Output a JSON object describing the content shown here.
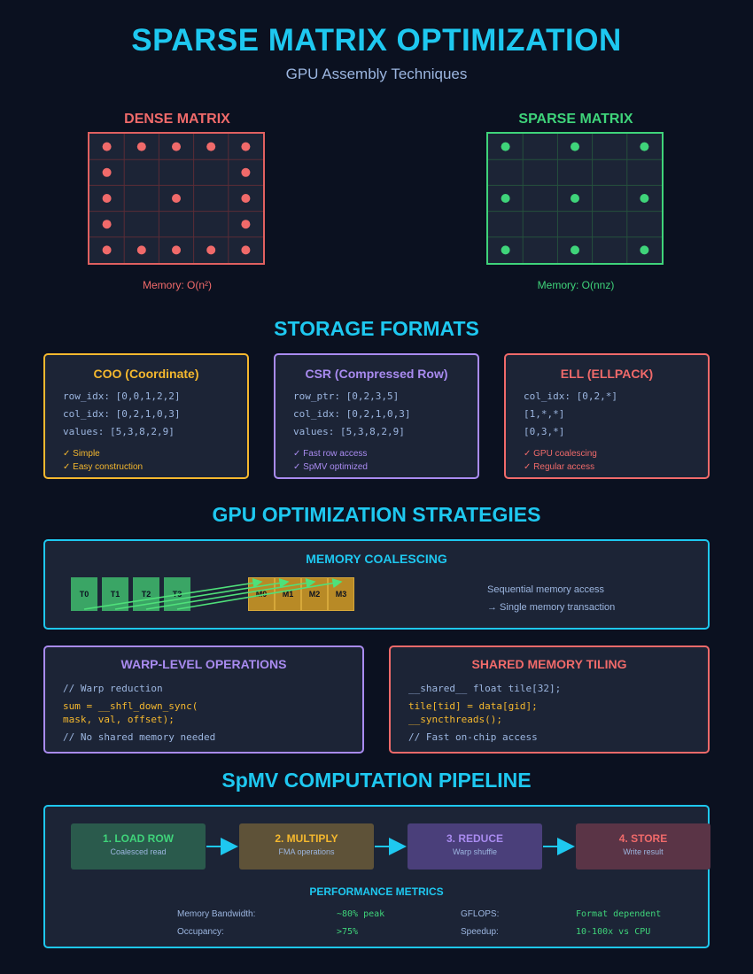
{
  "header": {
    "title": "SPARSE MATRIX OPTIMIZATION",
    "subtitle": "GPU Assembly Techniques"
  },
  "dense": {
    "title": "DENSE MATRIX",
    "caption": "Memory: O(n²)",
    "color": "#f06a6a",
    "mask": [
      [
        1,
        1,
        1,
        1,
        1
      ],
      [
        1,
        0,
        0,
        0,
        1
      ],
      [
        1,
        0,
        1,
        0,
        1
      ],
      [
        1,
        0,
        0,
        0,
        1
      ],
      [
        1,
        1,
        1,
        1,
        1
      ]
    ]
  },
  "sparse": {
    "title": "SPARSE MATRIX",
    "caption": "Memory: O(nnz)",
    "color": "#3fd47a",
    "mask": [
      [
        1,
        0,
        1,
        0,
        1
      ],
      [
        0,
        0,
        0,
        0,
        0
      ],
      [
        1,
        0,
        1,
        0,
        1
      ],
      [
        0,
        0,
        0,
        0,
        0
      ],
      [
        1,
        0,
        1,
        0,
        1
      ]
    ]
  },
  "storage": {
    "title": "STORAGE FORMATS",
    "formats": [
      {
        "name": "COO (Coordinate)",
        "color": "#f5b82e",
        "lines": [
          "row_idx: [0,0,1,2,2]",
          "col_idx: [0,2,1,0,3]",
          "values: [5,3,8,2,9]"
        ],
        "checks": [
          "✓ Simple",
          "✓ Easy construction"
        ]
      },
      {
        "name": "CSR (Compressed Row)",
        "color": "#a98bf0",
        "lines": [
          "row_ptr: [0,2,3,5]",
          "col_idx: [0,2,1,0,3]",
          "values: [5,3,8,2,9]"
        ],
        "checks": [
          "✓ Fast row access",
          "✓ SpMV optimized"
        ]
      },
      {
        "name": "ELL (ELLPACK)",
        "color": "#f06a6a",
        "lines": [
          "col_idx: [0,2,*]",
          "[1,*,*]",
          "[0,3,*]"
        ],
        "checks": [
          "✓ GPU coalescing",
          "✓ Regular access"
        ]
      }
    ]
  },
  "strategies": {
    "title": "GPU OPTIMIZATION STRATEGIES",
    "coalescing": {
      "title": "MEMORY COALESCING",
      "color": "#1ec8f0",
      "threads": [
        "T0",
        "T1",
        "T2",
        "T3"
      ],
      "memory": [
        "M0",
        "M1",
        "M2",
        "M3"
      ],
      "note1": "Sequential memory access",
      "note2": "→ Single memory transaction"
    },
    "warp": {
      "title": "WARP-LEVEL OPERATIONS",
      "color": "#a98bf0",
      "comment1": "// Warp reduction",
      "code1": "sum = __shfl_down_sync(",
      "code2": "mask, val, offset);",
      "comment2": "// No shared memory needed"
    },
    "tiling": {
      "title": "SHARED MEMORY TILING",
      "color": "#f06a6a",
      "code1": "__shared__ float tile[32];",
      "code2": "tile[tid] = data[gid];",
      "code3": "__syncthreads();",
      "comment": "// Fast on-chip access"
    }
  },
  "pipeline": {
    "title": "SpMV COMPUTATION PIPELINE",
    "stages": [
      {
        "title": "1. LOAD ROW",
        "sub": "Coalesced read",
        "color": "#3fd47a",
        "bg": "#2a5a4c"
      },
      {
        "title": "2. MULTIPLY",
        "sub": "FMA operations",
        "color": "#f5b82e",
        "bg": "#5e5238"
      },
      {
        "title": "3. REDUCE",
        "sub": "Warp shuffle",
        "color": "#a98bf0",
        "bg": "#4a3f7a"
      },
      {
        "title": "4. STORE",
        "sub": "Write result",
        "color": "#f06a6a",
        "bg": "#5a3446"
      }
    ],
    "metrics_title": "PERFORMANCE METRICS",
    "metrics": [
      {
        "label": "Memory Bandwidth:",
        "value": "~80% peak"
      },
      {
        "label": "GFLOPS:",
        "value": "Format dependent"
      },
      {
        "label": "Occupancy:",
        "value": ">75%"
      },
      {
        "label": "Speedup:",
        "value": "10-100x vs CPU"
      }
    ]
  }
}
